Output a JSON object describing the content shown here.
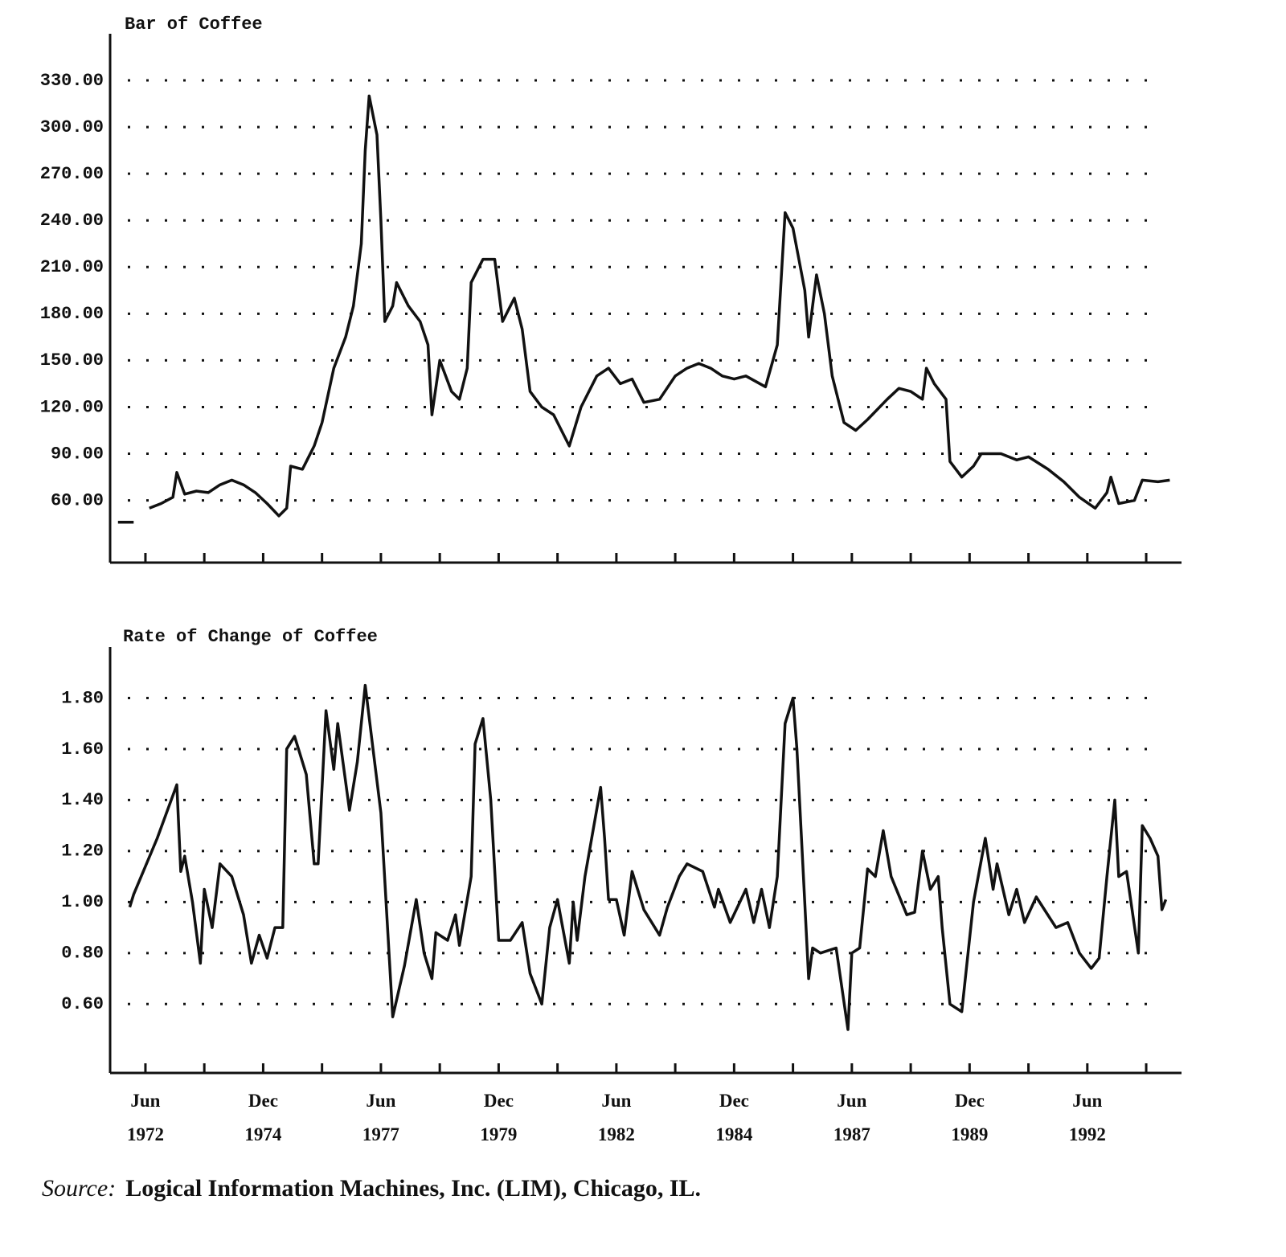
{
  "chart_data": [
    {
      "type": "line",
      "title": "Bar of Coffee",
      "x": [
        "1971-11",
        "1972-03",
        "1972-05",
        "1972-07",
        "1972-10",
        "1973-01",
        "1973-02",
        "1973-04",
        "1973-07",
        "1973-10",
        "1974-01",
        "1974-04",
        "1974-07",
        "1974-10",
        "1975-01",
        "1975-04",
        "1975-06",
        "1975-07",
        "1975-10",
        "1976-01",
        "1976-03",
        "1976-06",
        "1976-09",
        "1976-11",
        "1977-01",
        "1977-02",
        "1977-03",
        "1977-05",
        "1977-06",
        "1977-07",
        "1977-09",
        "1977-10",
        "1978-01",
        "1978-04",
        "1978-06",
        "1978-07",
        "1978-09",
        "1978-12",
        "1979-02",
        "1979-04",
        "1979-05",
        "1979-08",
        "1979-11",
        "1980-01",
        "1980-04",
        "1980-06",
        "1980-08",
        "1980-11",
        "1981-02",
        "1981-06",
        "1981-09",
        "1982-01",
        "1982-04",
        "1982-07",
        "1982-10",
        "1983-01",
        "1983-05",
        "1983-09",
        "1983-12",
        "1984-03",
        "1984-06",
        "1984-09",
        "1984-12",
        "1985-03",
        "1985-08",
        "1985-11",
        "1986-01",
        "1986-03",
        "1986-06",
        "1986-07",
        "1986-09",
        "1986-11",
        "1987-01",
        "1987-04",
        "1987-07",
        "1987-10",
        "1988-03",
        "1988-06",
        "1988-09",
        "1988-12",
        "1989-01",
        "1989-03",
        "1989-06",
        "1989-07",
        "1989-10",
        "1990-01",
        "1990-03",
        "1990-08",
        "1990-12",
        "1991-03",
        "1991-08",
        "1991-12",
        "1992-04",
        "1992-08",
        "1992-11",
        "1992-12",
        "1993-02",
        "1993-06",
        "1993-08",
        "1993-12",
        "1994-03"
      ],
      "series": [
        {
          "color": "#111111",
          "values": [
            46,
            46,
            null,
            55,
            58,
            62,
            78,
            64,
            66,
            65,
            70,
            73,
            70,
            65,
            58,
            50,
            55,
            82,
            80,
            95,
            110,
            145,
            165,
            185,
            225,
            285,
            320,
            295,
            240,
            175,
            185,
            200,
            185,
            175,
            160,
            115,
            150,
            130,
            125,
            145,
            200,
            215,
            215,
            175,
            190,
            170,
            130,
            120,
            115,
            95,
            120,
            140,
            145,
            135,
            138,
            123,
            125,
            140,
            145,
            148,
            145,
            140,
            138,
            140,
            133,
            160,
            245,
            235,
            195,
            165,
            205,
            180,
            140,
            110,
            105,
            112,
            125,
            132,
            130,
            125,
            145,
            135,
            125,
            85,
            75,
            82,
            90,
            90,
            86,
            88,
            80,
            72,
            62,
            55,
            65,
            75,
            58,
            60,
            73,
            72,
            73
          ]
        }
      ],
      "xlim": [
        "1971-09",
        "1994-06"
      ],
      "xticks": [
        "1972-06",
        "1973-09",
        "1974-12",
        "1976-03",
        "1977-06",
        "1978-09",
        "1979-12",
        "1981-03",
        "1982-06",
        "1983-09",
        "1984-12",
        "1986-03",
        "1987-06",
        "1988-09",
        "1989-12",
        "1991-03",
        "1992-06",
        "1993-09"
      ],
      "ylim": [
        20,
        360
      ],
      "yticks": [
        {
          "value": 60,
          "label": "60.00"
        },
        {
          "value": 90,
          "label": "90.00"
        },
        {
          "value": 120,
          "label": "120.00"
        },
        {
          "value": 150,
          "label": "150.00"
        },
        {
          "value": 180,
          "label": "180.00"
        },
        {
          "value": 210,
          "label": "210.00"
        },
        {
          "value": 240,
          "label": "240.00"
        },
        {
          "value": 270,
          "label": "270.00"
        },
        {
          "value": 300,
          "label": "300.00"
        },
        {
          "value": 330,
          "label": "330.00"
        }
      ],
      "grid": true
    },
    {
      "type": "line",
      "title": "Rate of Change of Coffee",
      "x": [
        "1972-02",
        "1972-03",
        "1972-09",
        "1973-02",
        "1973-03",
        "1973-04",
        "1973-06",
        "1973-08",
        "1973-09",
        "1973-11",
        "1974-01",
        "1974-04",
        "1974-07",
        "1974-09",
        "1974-11",
        "1975-01",
        "1975-03",
        "1975-05",
        "1975-06",
        "1975-08",
        "1975-11",
        "1976-01",
        "1976-02",
        "1976-04",
        "1976-06",
        "1976-07",
        "1976-10",
        "1976-12",
        "1977-02",
        "1977-04",
        "1977-06",
        "1977-09",
        "1977-12",
        "1978-03",
        "1978-05",
        "1978-07",
        "1978-08",
        "1978-11",
        "1979-01",
        "1979-02",
        "1979-05",
        "1979-06",
        "1979-08",
        "1979-10",
        "1979-12",
        "1980-03",
        "1980-06",
        "1980-08",
        "1980-11",
        "1981-01",
        "1981-03",
        "1981-06",
        "1981-07",
        "1981-08",
        "1981-10",
        "1982-02",
        "1982-03",
        "1982-04",
        "1982-06",
        "1982-08",
        "1982-10",
        "1983-01",
        "1983-05",
        "1983-07",
        "1983-10",
        "1983-12",
        "1984-04",
        "1984-07",
        "1984-08",
        "1984-11",
        "1985-03",
        "1985-05",
        "1985-07",
        "1985-09",
        "1985-11",
        "1986-01",
        "1986-03",
        "1986-04",
        "1986-07",
        "1986-08",
        "1986-10",
        "1987-02",
        "1987-05",
        "1987-06",
        "1987-08",
        "1987-10",
        "1987-12",
        "1988-02",
        "1988-04",
        "1988-08",
        "1988-10",
        "1988-12",
        "1989-02",
        "1989-04",
        "1989-05",
        "1989-07",
        "1989-10",
        "1990-01",
        "1990-04",
        "1990-06",
        "1990-07",
        "1990-10",
        "1990-12",
        "1991-02",
        "1991-05",
        "1991-10",
        "1992-01",
        "1992-04",
        "1992-07",
        "1992-09",
        "1992-11",
        "1993-01",
        "1993-02",
        "1993-04",
        "1993-07",
        "1993-08",
        "1993-10",
        "1993-12",
        "1994-01",
        "1994-02"
      ],
      "series": [
        {
          "color": "#111111",
          "values": [
            0.98,
            1.03,
            1.25,
            1.46,
            1.12,
            1.18,
            1.0,
            0.76,
            1.05,
            0.9,
            1.15,
            1.1,
            0.95,
            0.76,
            0.87,
            0.78,
            0.9,
            0.9,
            1.6,
            1.65,
            1.5,
            1.15,
            1.15,
            1.75,
            1.52,
            1.7,
            1.36,
            1.55,
            1.85,
            1.6,
            1.35,
            0.55,
            0.75,
            1.01,
            0.8,
            0.7,
            0.88,
            0.85,
            0.95,
            0.83,
            1.1,
            1.62,
            1.72,
            1.4,
            0.85,
            0.85,
            0.92,
            0.72,
            0.6,
            0.9,
            1.01,
            0.76,
            1.0,
            0.85,
            1.1,
            1.45,
            1.25,
            1.01,
            1.01,
            0.87,
            1.12,
            0.97,
            0.87,
            0.98,
            1.1,
            1.15,
            1.12,
            0.98,
            1.05,
            0.92,
            1.05,
            0.92,
            1.05,
            0.9,
            1.1,
            1.7,
            1.8,
            1.6,
            0.7,
            0.82,
            0.8,
            0.82,
            0.5,
            0.8,
            0.82,
            1.13,
            1.1,
            1.28,
            1.1,
            0.95,
            0.96,
            1.2,
            1.05,
            1.1,
            0.9,
            0.6,
            0.57,
            1.0,
            1.25,
            1.05,
            1.15,
            0.95,
            1.05,
            0.92,
            1.02,
            0.9,
            0.92,
            0.8,
            0.74,
            0.78,
            1.1,
            1.4,
            1.1,
            1.12,
            0.8,
            1.3,
            1.25,
            1.18,
            0.97,
            1.01
          ]
        }
      ],
      "xlim": [
        "1971-09",
        "1994-06"
      ],
      "xticks": [
        {
          "value": "1972-06",
          "label": "Jun 1972"
        },
        "1973-09",
        {
          "value": "1974-12",
          "label": "Dec 1974"
        },
        "1976-03",
        {
          "value": "1977-06",
          "label": "Jun 1977"
        },
        "1978-09",
        {
          "value": "1979-12",
          "label": "Dec 1979"
        },
        "1981-03",
        {
          "value": "1982-06",
          "label": "Jun 1982"
        },
        "1983-09",
        {
          "value": "1984-12",
          "label": "Dec 1984"
        },
        "1986-03",
        {
          "value": "1987-06",
          "label": "Jun 1987"
        },
        "1988-09",
        {
          "value": "1989-12",
          "label": "Dec 1989"
        },
        "1991-03",
        {
          "value": "1992-06",
          "label": "Jun 1992"
        },
        "1993-09"
      ],
      "ylim": [
        0.33,
        2.0
      ],
      "yticks": [
        {
          "value": 0.6,
          "label": "0.60"
        },
        {
          "value": 0.8,
          "label": "0.80"
        },
        {
          "value": 1.0,
          "label": "1.00"
        },
        {
          "value": 1.2,
          "label": "1.20"
        },
        {
          "value": 1.4,
          "label": "1.40"
        },
        {
          "value": 1.6,
          "label": "1.60"
        },
        {
          "value": 1.8,
          "label": "1.80"
        }
      ],
      "grid": true
    }
  ],
  "source": {
    "label": "Source:",
    "text": "Logical Information Machines, Inc. (LIM), Chicago, IL."
  }
}
